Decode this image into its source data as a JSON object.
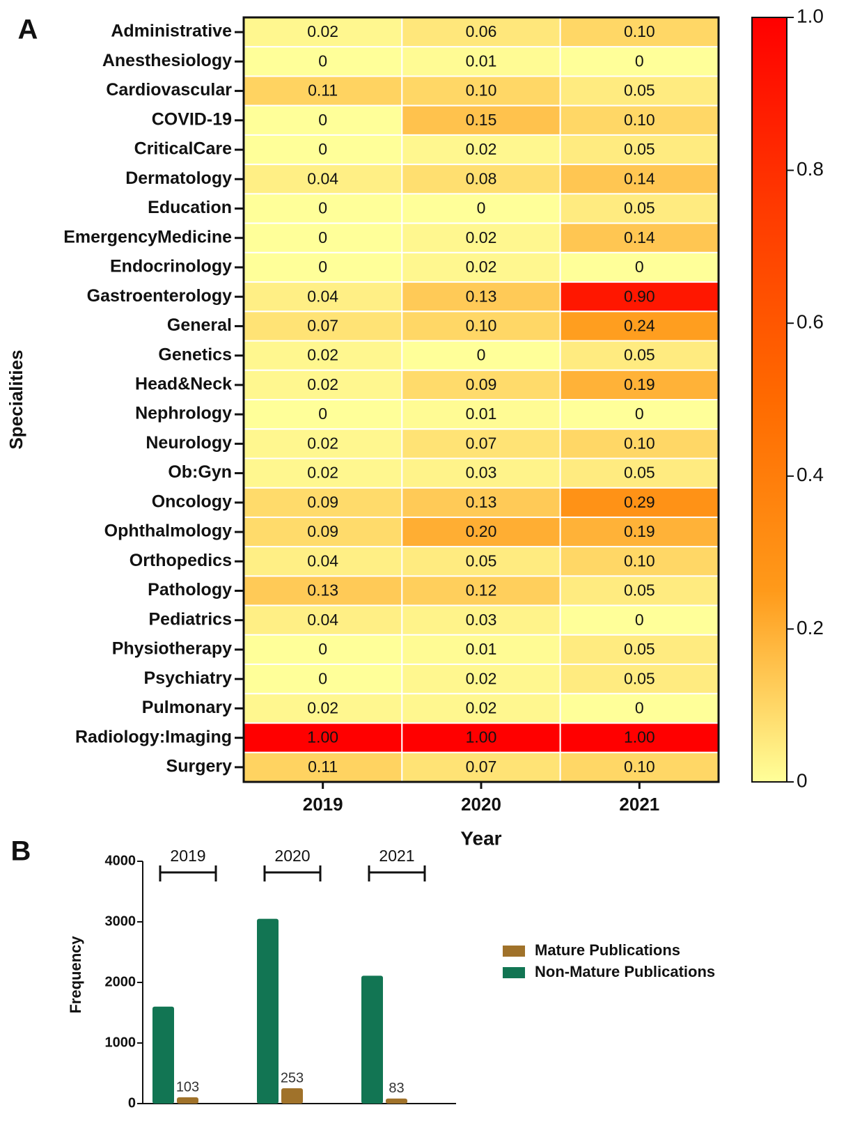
{
  "chart_data": [
    {
      "type": "heatmap",
      "panel_label": "A",
      "x_label": "Year",
      "y_label": "Specialities",
      "x_categories": [
        "2019",
        "2020",
        "2021"
      ],
      "y_categories": [
        "Administrative",
        "Anesthesiology",
        "Cardiovascular",
        "COVID-19",
        "CriticalCare",
        "Dermatology",
        "Education",
        "EmergencyMedicine",
        "Endocrinology",
        "Gastroenterology",
        "General",
        "Genetics",
        "Head&Neck",
        "Nephrology",
        "Neurology",
        "Ob:Gyn",
        "Oncology",
        "Ophthalmology",
        "Orthopedics",
        "Pathology",
        "Pediatrics",
        "Physiotherapy",
        "Psychiatry",
        "Pulmonary",
        "Radiology:Imaging",
        "Surgery"
      ],
      "values": [
        [
          0.02,
          0.06,
          0.1
        ],
        [
          0,
          0.01,
          0
        ],
        [
          0.11,
          0.1,
          0.05
        ],
        [
          0,
          0.15,
          0.1
        ],
        [
          0,
          0.02,
          0.05
        ],
        [
          0.04,
          0.08,
          0.14
        ],
        [
          0,
          0,
          0.05
        ],
        [
          0,
          0.02,
          0.14
        ],
        [
          0,
          0.02,
          0
        ],
        [
          0.04,
          0.13,
          0.9
        ],
        [
          0.07,
          0.1,
          0.24
        ],
        [
          0.02,
          0,
          0.05
        ],
        [
          0.02,
          0.09,
          0.19
        ],
        [
          0,
          0.01,
          0
        ],
        [
          0.02,
          0.07,
          0.1
        ],
        [
          0.02,
          0.03,
          0.05
        ],
        [
          0.09,
          0.13,
          0.29
        ],
        [
          0.09,
          0.2,
          0.19
        ],
        [
          0.04,
          0.05,
          0.1
        ],
        [
          0.13,
          0.12,
          0.05
        ],
        [
          0.04,
          0.03,
          0
        ],
        [
          0,
          0.01,
          0.05
        ],
        [
          0,
          0.02,
          0.05
        ],
        [
          0.02,
          0.02,
          0
        ],
        [
          1,
          1,
          1
        ],
        [
          0.11,
          0.07,
          0.1
        ]
      ],
      "value_labels": [
        [
          "0.02",
          "0.06",
          "0.10"
        ],
        [
          "0",
          "0.01",
          "0"
        ],
        [
          "0.11",
          "0.10",
          "0.05"
        ],
        [
          "0",
          "0.15",
          "0.10"
        ],
        [
          "0",
          "0.02",
          "0.05"
        ],
        [
          "0.04",
          "0.08",
          "0.14"
        ],
        [
          "0",
          "0",
          "0.05"
        ],
        [
          "0",
          "0.02",
          "0.14"
        ],
        [
          "0",
          "0.02",
          "0"
        ],
        [
          "0.04",
          "0.13",
          "0.90"
        ],
        [
          "0.07",
          "0.10",
          "0.24"
        ],
        [
          "0.02",
          "0",
          "0.05"
        ],
        [
          "0.02",
          "0.09",
          "0.19"
        ],
        [
          "0",
          "0.01",
          "0"
        ],
        [
          "0.02",
          "0.07",
          "0.10"
        ],
        [
          "0.02",
          "0.03",
          "0.05"
        ],
        [
          "0.09",
          "0.13",
          "0.29"
        ],
        [
          "0.09",
          "0.20",
          "0.19"
        ],
        [
          "0.04",
          "0.05",
          "0.10"
        ],
        [
          "0.13",
          "0.12",
          "0.05"
        ],
        [
          "0.04",
          "0.03",
          "0"
        ],
        [
          "0",
          "0.01",
          "0.05"
        ],
        [
          "0",
          "0.02",
          "0.05"
        ],
        [
          "0.02",
          "0.02",
          "0"
        ],
        [
          "1.00",
          "1.00",
          "1.00"
        ],
        [
          "0.11",
          "0.07",
          "0.10"
        ]
      ],
      "zlim": [
        0,
        1
      ],
      "zticks": [
        0,
        0.2,
        0.4,
        0.6,
        0.8,
        {
          "value": 1,
          "label": "1.0"
        }
      ],
      "colorscale": [
        "#ffff99",
        "#ff9a1a",
        "#ff6a00",
        "#ff3a00",
        "#ff0000"
      ]
    },
    {
      "type": "bar",
      "panel_label": "B",
      "y_label": "Frequency",
      "categories": [
        "2019",
        "2020",
        "2021"
      ],
      "series": [
        {
          "name": "Mature Publications",
          "color": "#a0722a",
          "values": [
            103,
            253,
            83
          ],
          "show_values": true
        },
        {
          "name": "Non-Mature Publications",
          "color": "#127553",
          "values": [
            1600,
            3050,
            2110
          ],
          "show_values": false
        }
      ],
      "ylim": [
        0,
        4000
      ],
      "yticks": [
        0,
        1000,
        2000,
        3000,
        4000
      ],
      "legend": "right"
    }
  ]
}
